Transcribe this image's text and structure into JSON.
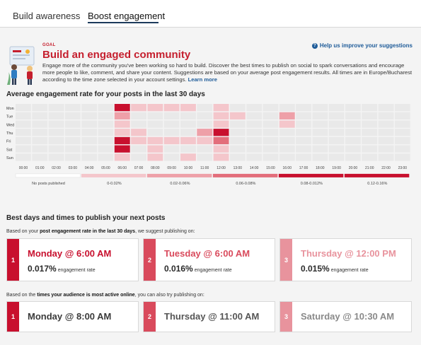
{
  "tabs": [
    {
      "label": "Build awareness",
      "active": false
    },
    {
      "label": "Boost engagement",
      "active": true
    }
  ],
  "goal": {
    "label": "GOAL",
    "title": "Build an engaged community",
    "description": "Engage more of the community you've been working so hard to build. Discover the best times to publish on social to spark conversations and encourage more people to like, comment, and share your content. Suggestions are based on your average post engagement results. All times are in Europe/Bucharest according to the time zone selected in your account settings.",
    "learn_more": "Learn more",
    "help_link": "Help us improve your suggestions"
  },
  "colors": {
    "accent": "#c51f2e",
    "link": "#1f5c99",
    "level0": "#e9e9e9",
    "level1": "#f4c6cb",
    "level2": "#eea0a8",
    "level3": "#e36e7b",
    "level4": "#c8102e"
  },
  "heatmap": {
    "title": "Average engagement rate for your posts in the last 30 days",
    "days": [
      "Mon",
      "Tue",
      "Wed",
      "Thu",
      "Fri",
      "Sat",
      "Sun"
    ],
    "hours": [
      "00:00",
      "01:00",
      "02:00",
      "03:00",
      "04:00",
      "05:00",
      "06:00",
      "07:00",
      "08:00",
      "09:00",
      "10:00",
      "11:00",
      "12:00",
      "13:00",
      "14:00",
      "15:00",
      "16:00",
      "17:00",
      "18:00",
      "19:00",
      "20:00",
      "21:00",
      "22:00",
      "23:00"
    ],
    "levels": [
      [
        0,
        0,
        0,
        0,
        0,
        0,
        4,
        1,
        1,
        1,
        1,
        0,
        1,
        0,
        0,
        0,
        0,
        0,
        0,
        0,
        0,
        0,
        0,
        0
      ],
      [
        0,
        0,
        0,
        0,
        0,
        0,
        2,
        0,
        0,
        0,
        0,
        0,
        1,
        1,
        0,
        0,
        2,
        0,
        0,
        0,
        0,
        0,
        0,
        0
      ],
      [
        0,
        0,
        0,
        0,
        0,
        0,
        1,
        0,
        0,
        0,
        0,
        0,
        1,
        0,
        0,
        0,
        1,
        0,
        0,
        0,
        0,
        0,
        0,
        0
      ],
      [
        0,
        0,
        0,
        0,
        0,
        0,
        1,
        1,
        0,
        0,
        0,
        2,
        4,
        0,
        0,
        0,
        0,
        0,
        0,
        0,
        0,
        0,
        0,
        0
      ],
      [
        0,
        0,
        0,
        0,
        0,
        0,
        4,
        1,
        1,
        1,
        1,
        1,
        3,
        0,
        0,
        0,
        0,
        0,
        0,
        0,
        0,
        0,
        0,
        0
      ],
      [
        0,
        0,
        0,
        0,
        0,
        0,
        4,
        0,
        1,
        0,
        0,
        0,
        1,
        0,
        0,
        0,
        0,
        0,
        0,
        0,
        0,
        0,
        0,
        0
      ],
      [
        0,
        0,
        0,
        0,
        0,
        0,
        1,
        0,
        1,
        0,
        1,
        0,
        1,
        0,
        0,
        0,
        0,
        0,
        0,
        0,
        0,
        0,
        0,
        0
      ]
    ],
    "legend": [
      "No posts published",
      "0-0.02%",
      "0.02-0.06%",
      "0.06-0.08%",
      "0.08-0.012%",
      "0.12-0.16%"
    ]
  },
  "best": {
    "title": "Best days and times to publish your next posts",
    "note_prefix": "Based on your ",
    "note_bold": "post engagement rate in the last 30 days",
    "note_suffix": ", we suggest publishing on:",
    "rate_label": "engagement rate",
    "top": [
      {
        "rank": "1",
        "when": "Monday @ 6:00 AM",
        "rate": "0.017%",
        "color": "#c8102e"
      },
      {
        "rank": "2",
        "when": "Tuesday @ 6:00 AM",
        "rate": "0.016%",
        "color": "#d94a5c"
      },
      {
        "rank": "3",
        "when": "Thursday @ 12:00 PM",
        "rate": "0.015%",
        "color": "#e8939d"
      }
    ],
    "note2_prefix": "Based on the ",
    "note2_bold": "times your audience is most active online",
    "note2_suffix": ", you can also try publishing on:",
    "audience": [
      {
        "rank": "1",
        "when": "Monday @ 8:00 AM",
        "color": "#c8102e",
        "text_color": "#3a3a3a"
      },
      {
        "rank": "2",
        "when": "Thursday @ 11:00 AM",
        "color": "#d94a5c",
        "text_color": "#555555"
      },
      {
        "rank": "3",
        "when": "Saturday @ 10:30 AM",
        "color": "#e8939d",
        "text_color": "#8a8a8a"
      }
    ]
  }
}
